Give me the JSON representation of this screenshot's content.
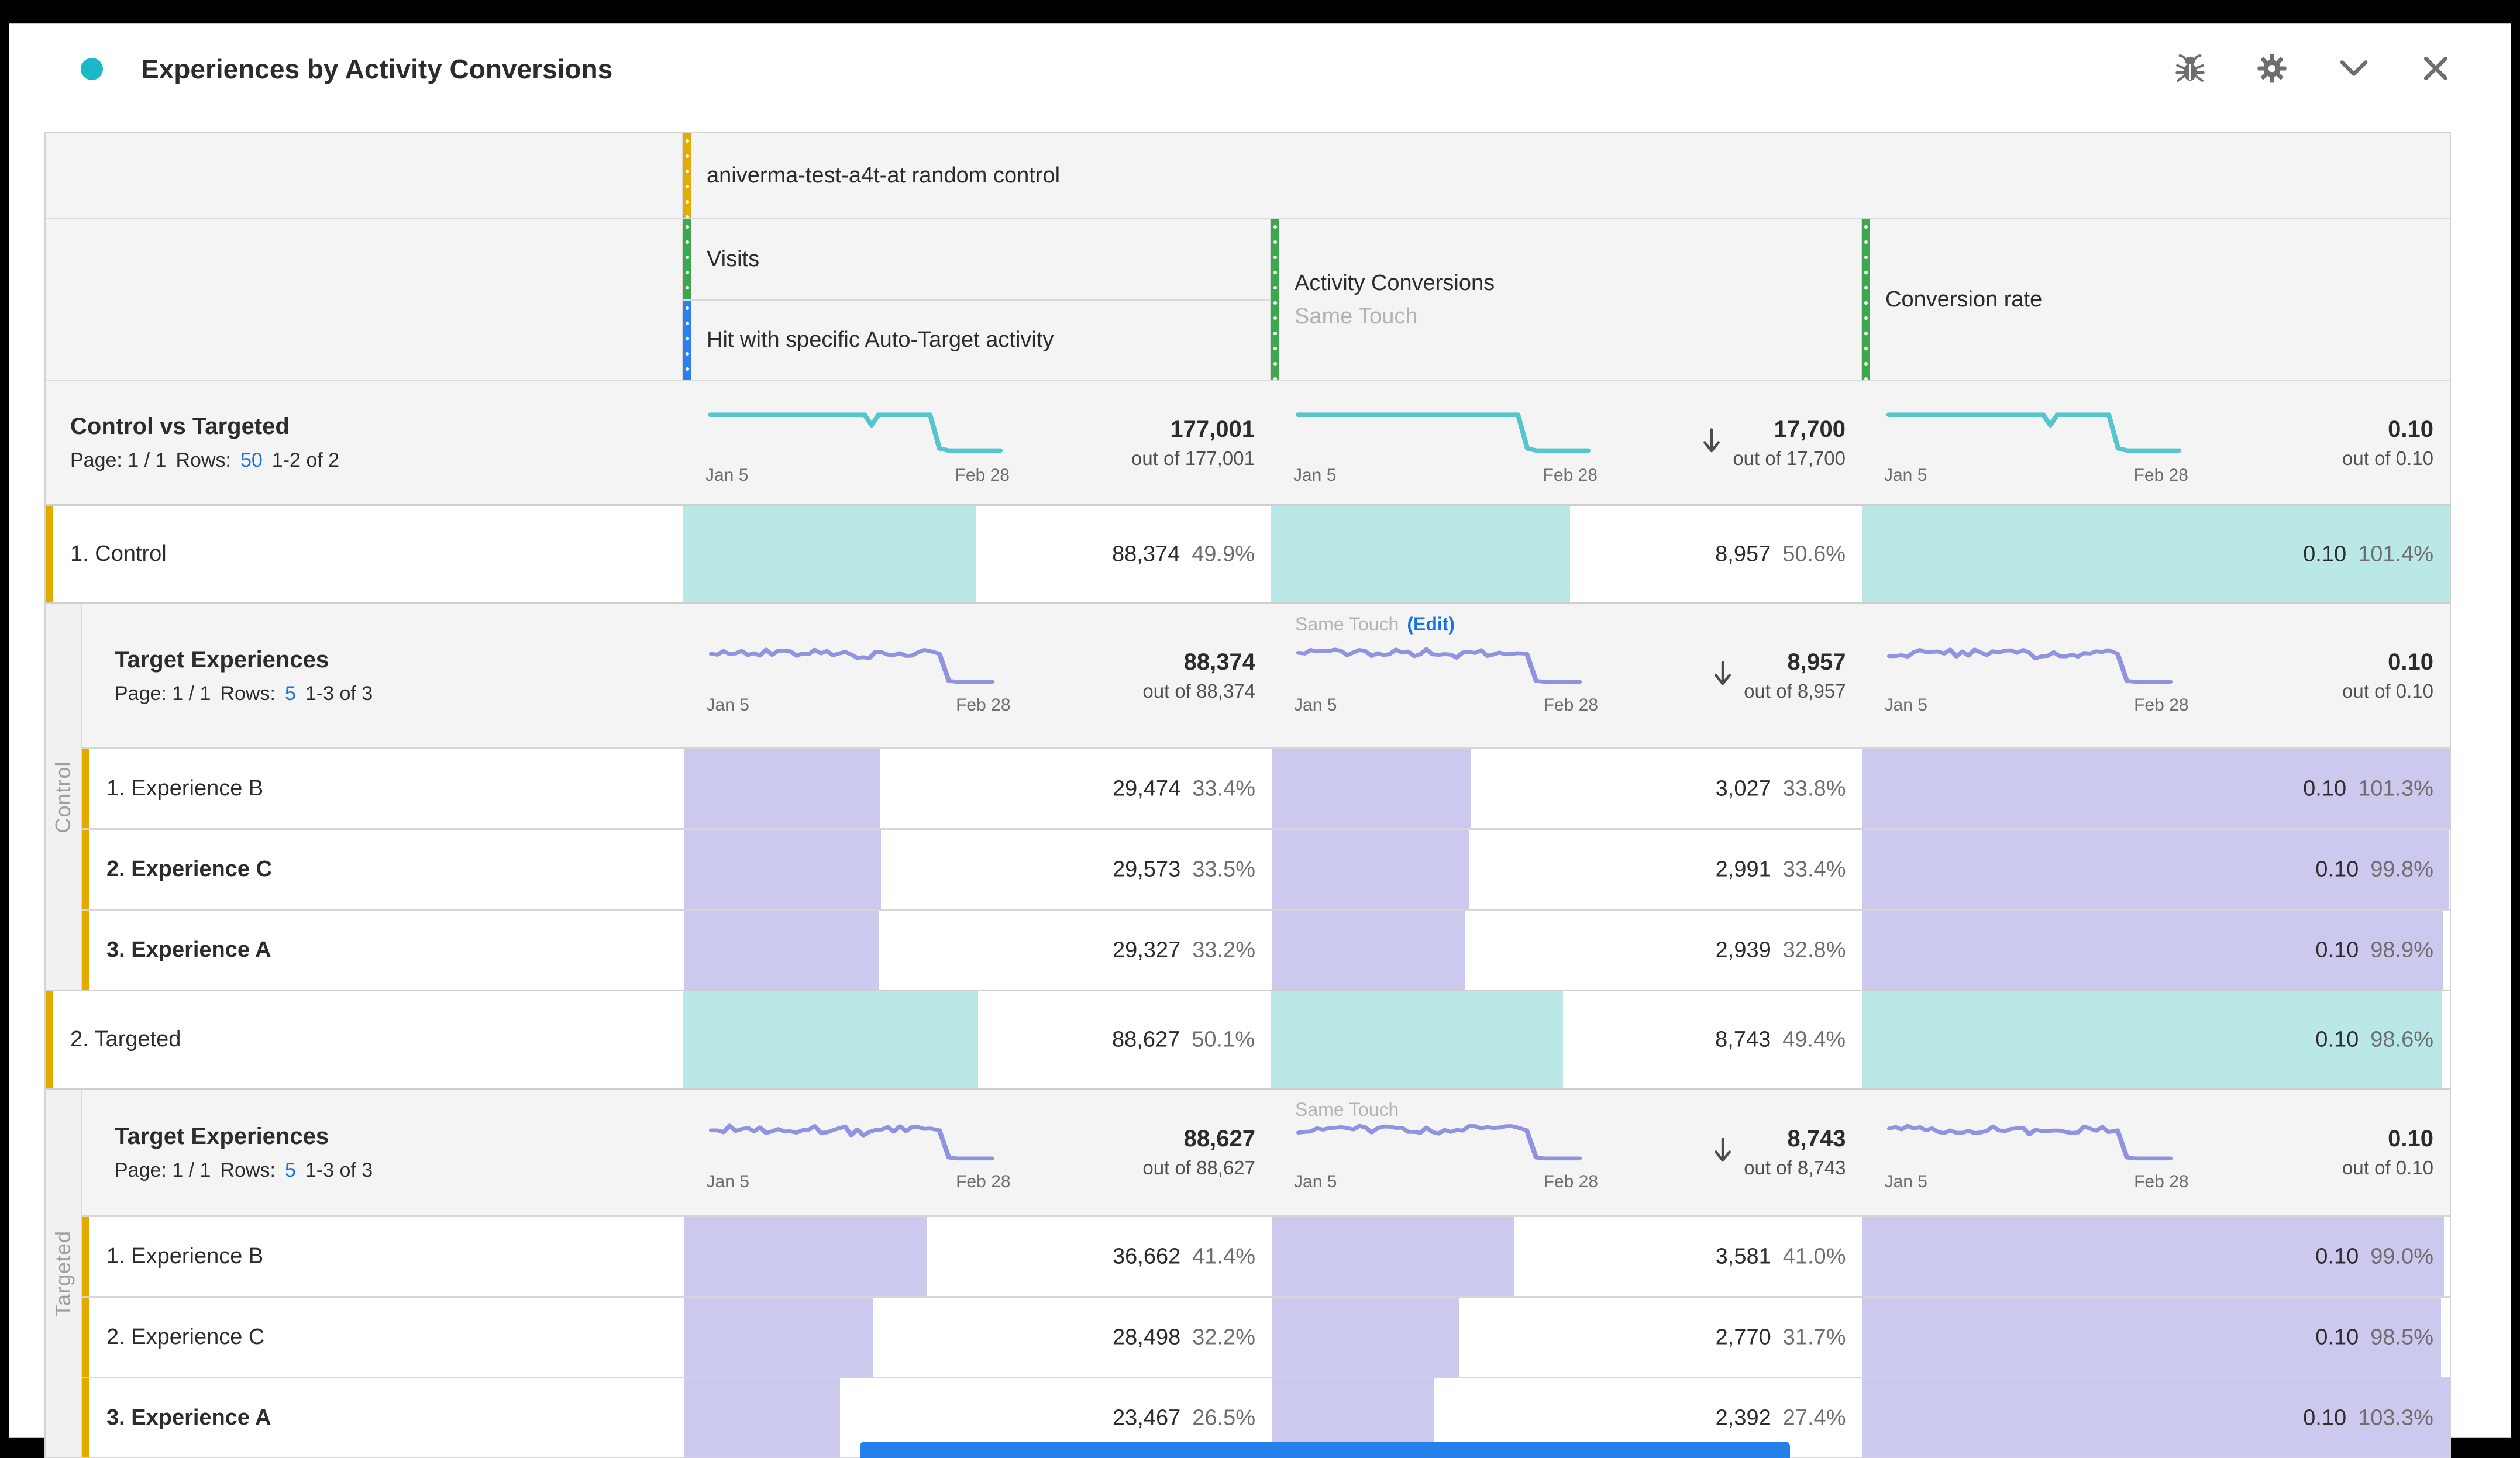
{
  "panel": {
    "title": "Experiences by Activity Conversions",
    "icons": [
      "debug-icon",
      "settings-gear-icon",
      "collapse-chevron-icon",
      "close-icon"
    ]
  },
  "header": {
    "segment": "aniverma-test-a4t-at random control",
    "visits_metric": "Visits",
    "hit_segment": "Hit with specific Auto-Target activity",
    "conversions_metric": "Activity Conversions",
    "conversions_model": "Same Touch",
    "rate_metric": "Conversion rate"
  },
  "dates": {
    "start": "Jan 5",
    "end": "Feb 28"
  },
  "summary": {
    "title": "Control vs Targeted",
    "page": "Page: 1 / 1",
    "rows_label": "Rows:",
    "rows": "50",
    "range": "1-2 of 2",
    "visits_total": "177,001",
    "visits_outof": "out of 177,001",
    "conv_total": "17,700",
    "conv_outof": "out of 17,700",
    "rate_total": "0.10",
    "rate_outof": "out of 0.10"
  },
  "control": {
    "side_label": "Control",
    "row": {
      "label": "1. Control",
      "visits": "88,374",
      "visits_pct": "49.9%",
      "visits_fill": 49.9,
      "conv": "8,957",
      "conv_pct": "50.6%",
      "conv_fill": 50.6,
      "rate": "0.10",
      "rate_pct": "101.4%",
      "rate_fill": 100
    },
    "sub": {
      "title": "Target Experiences",
      "page": "Page: 1 / 1",
      "rows_label": "Rows:",
      "rows": "5",
      "range": "1-3 of 3",
      "visits_total": "88,374",
      "visits_outof": "out of 88,374",
      "same_touch": "Same Touch",
      "edit": "(Edit)",
      "conv_total": "8,957",
      "conv_outof": "out of 8,957",
      "rate_total": "0.10",
      "rate_outof": "out of 0.10"
    },
    "experiences": [
      {
        "label": "1. Experience B",
        "visits": "29,474",
        "visits_pct": "33.4%",
        "visits_fill": 33.4,
        "conv": "3,027",
        "conv_pct": "33.8%",
        "conv_fill": 33.8,
        "rate": "0.10",
        "rate_pct": "101.3%",
        "rate_fill": 100
      },
      {
        "label": "2. Experience C",
        "visits": "29,573",
        "visits_pct": "33.5%",
        "visits_fill": 33.5,
        "conv": "2,991",
        "conv_pct": "33.4%",
        "conv_fill": 33.4,
        "rate": "0.10",
        "rate_pct": "99.8%",
        "rate_fill": 99.8
      },
      {
        "label": "3. Experience A",
        "visits": "29,327",
        "visits_pct": "33.2%",
        "visits_fill": 33.2,
        "conv": "2,939",
        "conv_pct": "32.8%",
        "conv_fill": 32.8,
        "rate": "0.10",
        "rate_pct": "98.9%",
        "rate_fill": 98.9
      }
    ]
  },
  "targeted": {
    "side_label": "Targeted",
    "row": {
      "label": "2. Targeted",
      "visits": "88,627",
      "visits_pct": "50.1%",
      "visits_fill": 50.1,
      "conv": "8,743",
      "conv_pct": "49.4%",
      "conv_fill": 49.4,
      "rate": "0.10",
      "rate_pct": "98.6%",
      "rate_fill": 98.6
    },
    "sub": {
      "title": "Target Experiences",
      "page": "Page: 1 / 1",
      "rows_label": "Rows:",
      "rows": "5",
      "range": "1-3 of 3",
      "visits_total": "88,627",
      "visits_outof": "out of 88,627",
      "same_touch": "Same Touch",
      "conv_total": "8,743",
      "conv_outof": "out of 8,743",
      "rate_total": "0.10",
      "rate_outof": "out of 0.10"
    },
    "experiences": [
      {
        "label": "1. Experience B",
        "visits": "36,662",
        "visits_pct": "41.4%",
        "visits_fill": 41.4,
        "conv": "3,581",
        "conv_pct": "41.0%",
        "conv_fill": 41.0,
        "rate": "0.10",
        "rate_pct": "99.0%",
        "rate_fill": 99.0
      },
      {
        "label": "2. Experience C",
        "visits": "28,498",
        "visits_pct": "32.2%",
        "visits_fill": 32.2,
        "conv": "2,770",
        "conv_pct": "31.7%",
        "conv_fill": 31.7,
        "rate": "0.10",
        "rate_pct": "98.5%",
        "rate_fill": 98.5
      },
      {
        "label": "3. Experience A",
        "visits": "23,467",
        "visits_pct": "26.5%",
        "visits_fill": 26.5,
        "conv": "2,392",
        "conv_pct": "27.4%",
        "conv_fill": 27.4,
        "rate": "0.10",
        "rate_pct": "103.3%",
        "rate_fill": 100
      }
    ]
  },
  "colors": {
    "accent_dot": "#1bb8c9",
    "teal_fill": "#b9e8e6",
    "purple_fill": "#ccc9ee",
    "teal_line": "#57c6cc",
    "purple_line": "#9193e0",
    "yellow_bar": "#e3ab00",
    "green_bar": "#3da74e",
    "blue_bar": "#2d7ff0",
    "link_blue": "#1473e6"
  }
}
